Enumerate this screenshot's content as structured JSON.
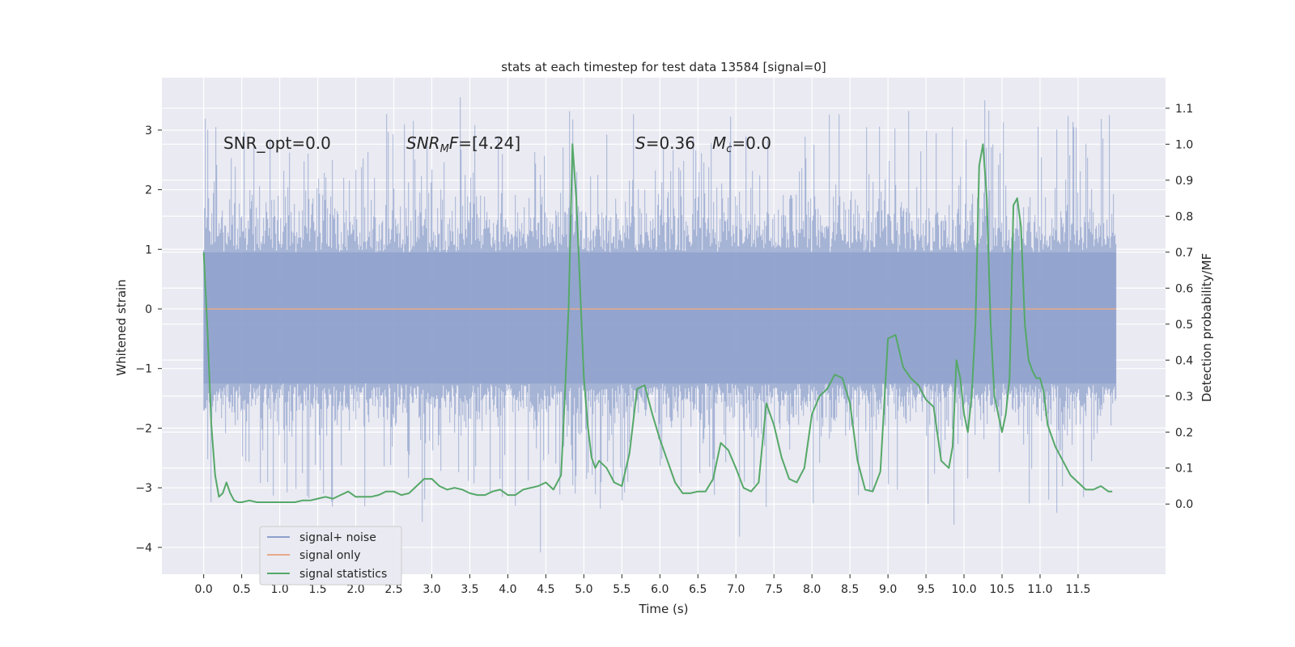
{
  "chart_data": {
    "type": "line",
    "title": "stats at each timestep for test data 13584 [signal=0]",
    "xlabel": "Time (s)",
    "ylabel": "Whitened strain",
    "y2label": "Detection probability/MF",
    "xlim": [
      -0.55,
      12.65
    ],
    "ylim": [
      -4.45,
      3.88
    ],
    "y2lim": [
      -0.195,
      1.185
    ],
    "xticks": [
      0.0,
      0.5,
      1.0,
      1.5,
      2.0,
      2.5,
      3.0,
      3.5,
      4.0,
      4.5,
      5.0,
      5.5,
      6.0,
      6.5,
      7.0,
      7.5,
      8.0,
      8.5,
      9.0,
      9.5,
      10.0,
      10.5,
      11.0,
      11.5
    ],
    "xtick_labels": [
      "0.0",
      "0.5",
      "1.0",
      "1.5",
      "2.0",
      "2.5",
      "3.0",
      "3.5",
      "4.0",
      "4.5",
      "5.0",
      "5.5",
      "6.0",
      "6.5",
      "7.0",
      "7.5",
      "8.0",
      "8.5",
      "9.0",
      "9.5",
      "10.0",
      "10.5",
      "11.0",
      "11.5"
    ],
    "yticks": [
      -4,
      -3,
      -2,
      -1,
      0,
      1,
      2,
      3
    ],
    "ytick_labels": [
      "−4",
      "−3",
      "−2",
      "−1",
      "0",
      "1",
      "2",
      "3"
    ],
    "y2ticks": [
      0.0,
      0.1,
      0.2,
      0.3,
      0.4,
      0.5,
      0.6,
      0.7,
      0.8,
      0.9,
      1.0,
      1.1
    ],
    "y2tick_labels": [
      "0.0",
      "0.1",
      "0.2",
      "0.3",
      "0.4",
      "0.5",
      "0.6",
      "0.7",
      "0.8",
      "0.9",
      "1.0",
      "1.1"
    ],
    "grid": true,
    "legend_position": "lower-left",
    "legend": [
      {
        "label": "signal+ noise",
        "color": "#8da0cb"
      },
      {
        "label": "signal only",
        "color": "#e8a989"
      },
      {
        "label": "signal statistics",
        "color": "#55a868"
      }
    ],
    "annotations": {
      "snr_opt": "SNR_opt=0.0",
      "snr_mf_sym": "SNR",
      "snr_mf_sub": "M",
      "snr_mf_sym2": "F",
      "snr_mf_val": "=[4.24]",
      "s_sym": "S",
      "s_val": "=0.36",
      "mc_sym": "M",
      "mc_sub": "c",
      "mc_val": "=0.0"
    },
    "series": [
      {
        "name": "signal+ noise",
        "axis": "left",
        "style": "dense-noise",
        "x_range": [
          0.0,
          12.0
        ],
        "band": [
          -1.25,
          0.95
        ],
        "peaks": [
          {
            "x": 3.38,
            "y": 3.55
          },
          {
            "x": 10.28,
            "y": 3.5
          },
          {
            "x": 11.45,
            "y": 3.05
          },
          {
            "x": 9.85,
            "y": 3.05
          },
          {
            "x": 8.72,
            "y": 3.05
          },
          {
            "x": 4.43,
            "y": -4.08
          },
          {
            "x": 7.05,
            "y": -3.82
          },
          {
            "x": 9.87,
            "y": -3.62
          },
          {
            "x": 2.88,
            "y": -3.57
          },
          {
            "x": 11.22,
            "y": -3.42
          },
          {
            "x": 5.22,
            "y": -3.35
          }
        ]
      },
      {
        "name": "signal only",
        "axis": "left",
        "x": [
          0.0,
          12.0
        ],
        "y": [
          0.0,
          0.0
        ]
      },
      {
        "name": "signal statistics",
        "axis": "right",
        "x": [
          0.0,
          0.05,
          0.1,
          0.15,
          0.2,
          0.25,
          0.3,
          0.35,
          0.4,
          0.45,
          0.5,
          0.6,
          0.7,
          0.8,
          0.9,
          1.0,
          1.1,
          1.2,
          1.3,
          1.4,
          1.5,
          1.6,
          1.7,
          1.8,
          1.9,
          2.0,
          2.1,
          2.2,
          2.3,
          2.4,
          2.5,
          2.6,
          2.7,
          2.8,
          2.9,
          3.0,
          3.1,
          3.2,
          3.3,
          3.4,
          3.5,
          3.6,
          3.7,
          3.8,
          3.9,
          4.0,
          4.1,
          4.2,
          4.3,
          4.4,
          4.5,
          4.6,
          4.7,
          4.75,
          4.8,
          4.85,
          4.9,
          4.95,
          5.0,
          5.05,
          5.1,
          5.15,
          5.2,
          5.3,
          5.4,
          5.5,
          5.6,
          5.7,
          5.8,
          5.9,
          6.0,
          6.1,
          6.2,
          6.3,
          6.4,
          6.5,
          6.6,
          6.7,
          6.8,
          6.9,
          7.0,
          7.1,
          7.2,
          7.3,
          7.4,
          7.5,
          7.6,
          7.7,
          7.8,
          7.9,
          8.0,
          8.1,
          8.2,
          8.3,
          8.4,
          8.5,
          8.6,
          8.7,
          8.8,
          8.9,
          9.0,
          9.1,
          9.2,
          9.3,
          9.4,
          9.5,
          9.6,
          9.7,
          9.8,
          9.85,
          9.9,
          9.95,
          10.0,
          10.05,
          10.1,
          10.15,
          10.2,
          10.25,
          10.3,
          10.35,
          10.4,
          10.45,
          10.5,
          10.55,
          10.6,
          10.65,
          10.7,
          10.75,
          10.8,
          10.85,
          10.9,
          10.95,
          11.0,
          11.05,
          11.1,
          11.2,
          11.3,
          11.4,
          11.5,
          11.6,
          11.7,
          11.8,
          11.9,
          11.95
        ],
        "y": [
          0.7,
          0.48,
          0.22,
          0.08,
          0.02,
          0.03,
          0.06,
          0.03,
          0.01,
          0.005,
          0.005,
          0.01,
          0.005,
          0.005,
          0.005,
          0.005,
          0.005,
          0.005,
          0.01,
          0.01,
          0.015,
          0.02,
          0.015,
          0.025,
          0.035,
          0.02,
          0.02,
          0.02,
          0.025,
          0.035,
          0.035,
          0.025,
          0.03,
          0.05,
          0.07,
          0.07,
          0.05,
          0.04,
          0.045,
          0.04,
          0.03,
          0.025,
          0.025,
          0.035,
          0.04,
          0.025,
          0.025,
          0.04,
          0.045,
          0.05,
          0.06,
          0.04,
          0.08,
          0.3,
          0.55,
          1.0,
          0.85,
          0.6,
          0.35,
          0.22,
          0.13,
          0.1,
          0.12,
          0.1,
          0.06,
          0.05,
          0.14,
          0.32,
          0.33,
          0.25,
          0.18,
          0.12,
          0.06,
          0.03,
          0.03,
          0.035,
          0.035,
          0.07,
          0.17,
          0.15,
          0.1,
          0.045,
          0.035,
          0.06,
          0.28,
          0.22,
          0.13,
          0.07,
          0.06,
          0.1,
          0.25,
          0.3,
          0.32,
          0.36,
          0.35,
          0.28,
          0.12,
          0.04,
          0.035,
          0.09,
          0.46,
          0.47,
          0.38,
          0.35,
          0.33,
          0.29,
          0.27,
          0.12,
          0.1,
          0.16,
          0.4,
          0.35,
          0.25,
          0.2,
          0.3,
          0.5,
          0.94,
          1.0,
          0.85,
          0.5,
          0.3,
          0.25,
          0.2,
          0.25,
          0.35,
          0.83,
          0.85,
          0.77,
          0.5,
          0.4,
          0.37,
          0.35,
          0.35,
          0.31,
          0.22,
          0.16,
          0.12,
          0.08,
          0.06,
          0.04,
          0.04,
          0.05,
          0.035,
          0.035
        ]
      }
    ]
  }
}
